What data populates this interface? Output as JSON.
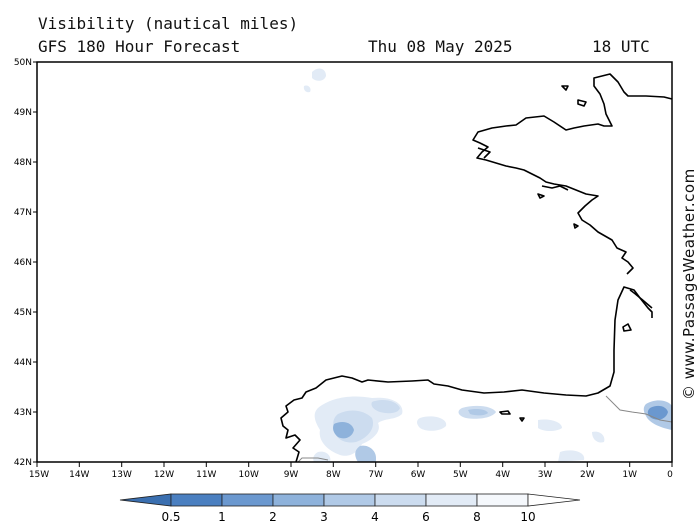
{
  "header": {
    "title": "Visibility (nautical miles)",
    "model": "GFS 180 Hour Forecast",
    "date": "Thu 08 May 2025",
    "time": "18 UTC"
  },
  "watermark": "© www.PassageWeather.com",
  "map": {
    "lat_labels": [
      "50N",
      "49N",
      "48N",
      "47N",
      "46N",
      "45N",
      "44N",
      "43N",
      "42N"
    ],
    "lon_labels": [
      "15W",
      "14W",
      "13W",
      "12W",
      "11W",
      "10W",
      "9W",
      "8W",
      "7W",
      "6W",
      "5W",
      "4W",
      "3W",
      "2W",
      "1W",
      "0"
    ]
  },
  "legend": {
    "labels": [
      "0.5",
      "1",
      "2",
      "3",
      "4",
      "6",
      "8",
      "10"
    ],
    "colors": [
      "#4a7fc0",
      "#6b98cf",
      "#8eb2db",
      "#b0c9e6",
      "#ccdcef",
      "#e2ebf6",
      "#f5f8fc"
    ]
  }
}
